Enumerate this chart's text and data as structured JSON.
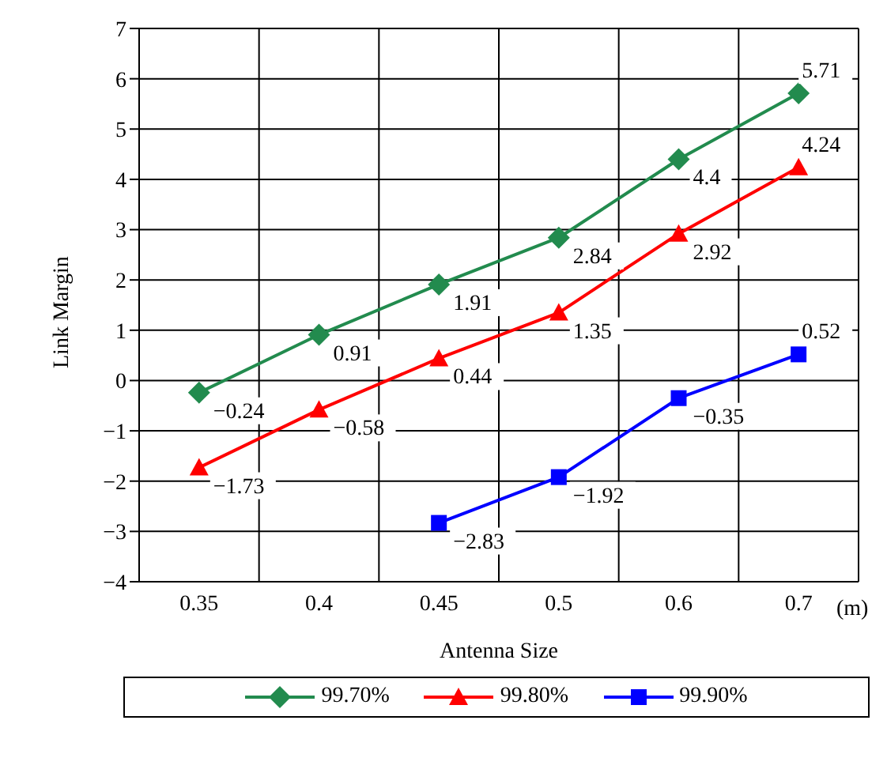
{
  "chart_data": {
    "type": "line",
    "xlabel": "Antenna Size",
    "ylabel": "Link Margin",
    "categories": [
      "0.35",
      "0.4",
      "0.45",
      "0.5",
      "0.6",
      "0.7"
    ],
    "annotations": [
      "(m)"
    ],
    "series": [
      {
        "name": "99.70%",
        "color": "#228b4e",
        "marker": "diamond",
        "values": [
          -0.24,
          0.91,
          1.91,
          2.84,
          4.4,
          5.71
        ]
      },
      {
        "name": "99.80%",
        "color": "#ff0000",
        "marker": "triangle",
        "values": [
          -1.73,
          -0.58,
          0.44,
          1.35,
          2.92,
          4.24
        ]
      },
      {
        "name": "99.90%",
        "color": "#0000ff",
        "marker": "square",
        "values": [
          null,
          null,
          -2.83,
          -1.92,
          -0.35,
          0.52
        ]
      }
    ],
    "ylim": [
      -4,
      7
    ],
    "yticks": [
      -4,
      -3,
      -2,
      -1,
      0,
      1,
      2,
      3,
      4,
      5,
      6,
      7
    ],
    "grid": true,
    "legend": "bottom",
    "data_labels": true,
    "line_style": "solid"
  }
}
